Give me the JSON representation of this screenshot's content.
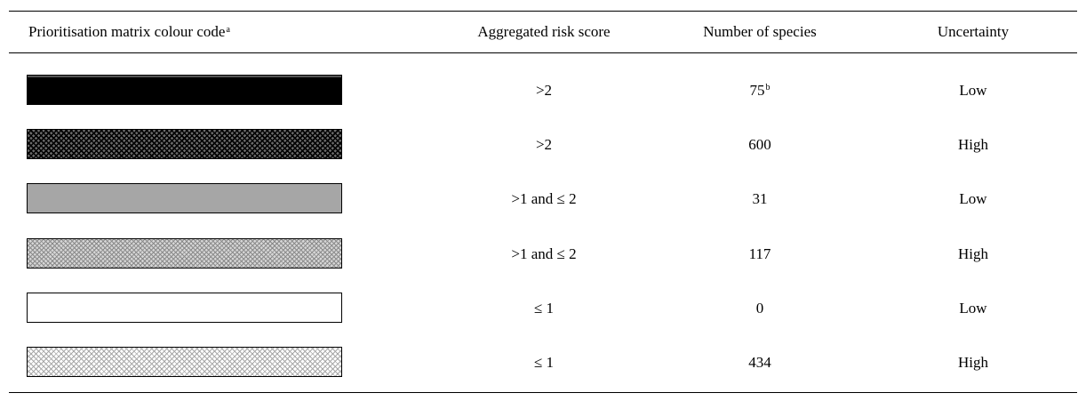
{
  "table": {
    "headers": {
      "colour_code": "Prioritisation matrix colour code",
      "colour_code_footnote": "a",
      "risk_score": "Aggregated risk score",
      "species": "Number of species",
      "uncertainty": "Uncertainty"
    },
    "rows": [
      {
        "swatch": "solid-black",
        "risk_score": ">2",
        "species": "75",
        "species_footnote": "b",
        "uncertainty": "Low"
      },
      {
        "swatch": "cross-hatch-dark",
        "risk_score": ">2",
        "species": "600",
        "species_footnote": "",
        "uncertainty": "High"
      },
      {
        "swatch": "solid-gray",
        "risk_score": ">1 and ≤ 2",
        "species": "31",
        "species_footnote": "",
        "uncertainty": "Low"
      },
      {
        "swatch": "cross-hatch-mid",
        "risk_score": ">1 and ≤ 2",
        "species": "117",
        "species_footnote": "",
        "uncertainty": "High"
      },
      {
        "swatch": "solid-white",
        "risk_score": "≤ 1",
        "species": "0",
        "species_footnote": "",
        "uncertainty": "Low"
      },
      {
        "swatch": "cross-hatch-light",
        "risk_score": "≤ 1",
        "species": "434",
        "species_footnote": "",
        "uncertainty": "High"
      }
    ]
  }
}
